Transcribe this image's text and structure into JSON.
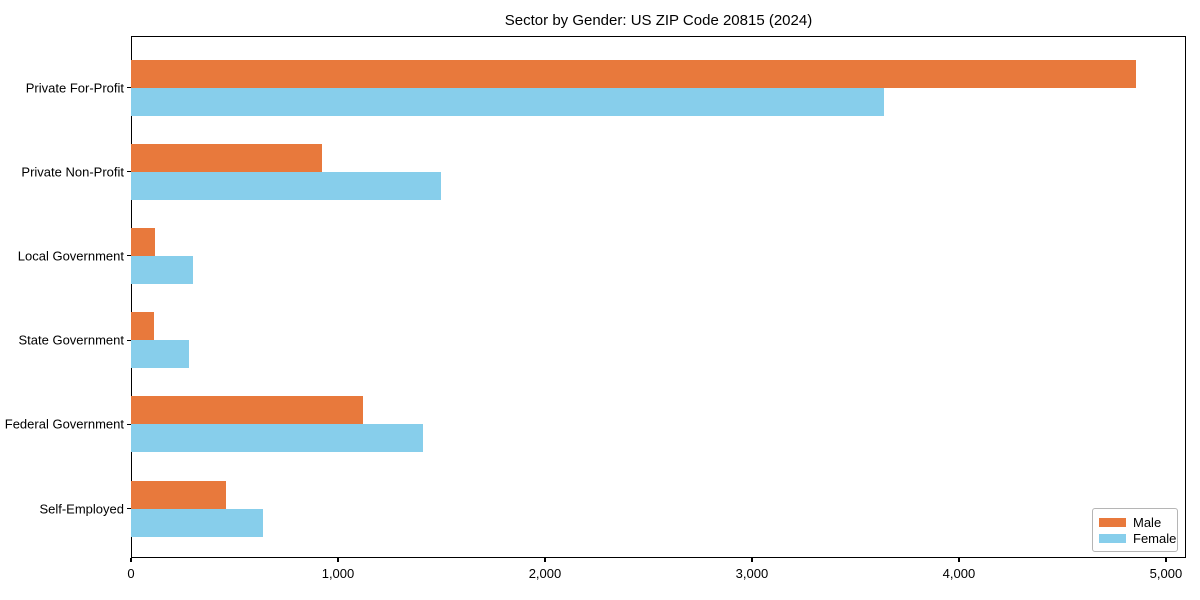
{
  "figure": {
    "background": "#ffffff",
    "text_color": "#000000",
    "axis_color": "#000000"
  },
  "chart_data": {
    "type": "bar",
    "orientation": "horizontal",
    "title": "Sector by Gender: US ZIP Code 20815 (2024)",
    "categories": [
      "Private For-Profit",
      "Private Non-Profit",
      "Local Government",
      "State Government",
      "Federal Government",
      "Self-Employed"
    ],
    "series": [
      {
        "name": "Male",
        "color": "#e8793c",
        "values": [
          4855,
          925,
          115,
          110,
          1120,
          460
        ]
      },
      {
        "name": "Female",
        "color": "#87ceeb",
        "values": [
          3640,
          1500,
          300,
          280,
          1410,
          640
        ]
      }
    ],
    "xlabel": "",
    "ylabel": "",
    "xlim": [
      0,
      5097
    ],
    "xticks": [
      {
        "value": 0,
        "label": "0"
      },
      {
        "value": 1000,
        "label": "1,000"
      },
      {
        "value": 2000,
        "label": "2,000"
      },
      {
        "value": 3000,
        "label": "3,000"
      },
      {
        "value": 4000,
        "label": "4,000"
      },
      {
        "value": 5000,
        "label": "5,000"
      }
    ],
    "grid": false,
    "legend": {
      "position": "lower right",
      "entries": [
        "Male",
        "Female"
      ]
    }
  }
}
